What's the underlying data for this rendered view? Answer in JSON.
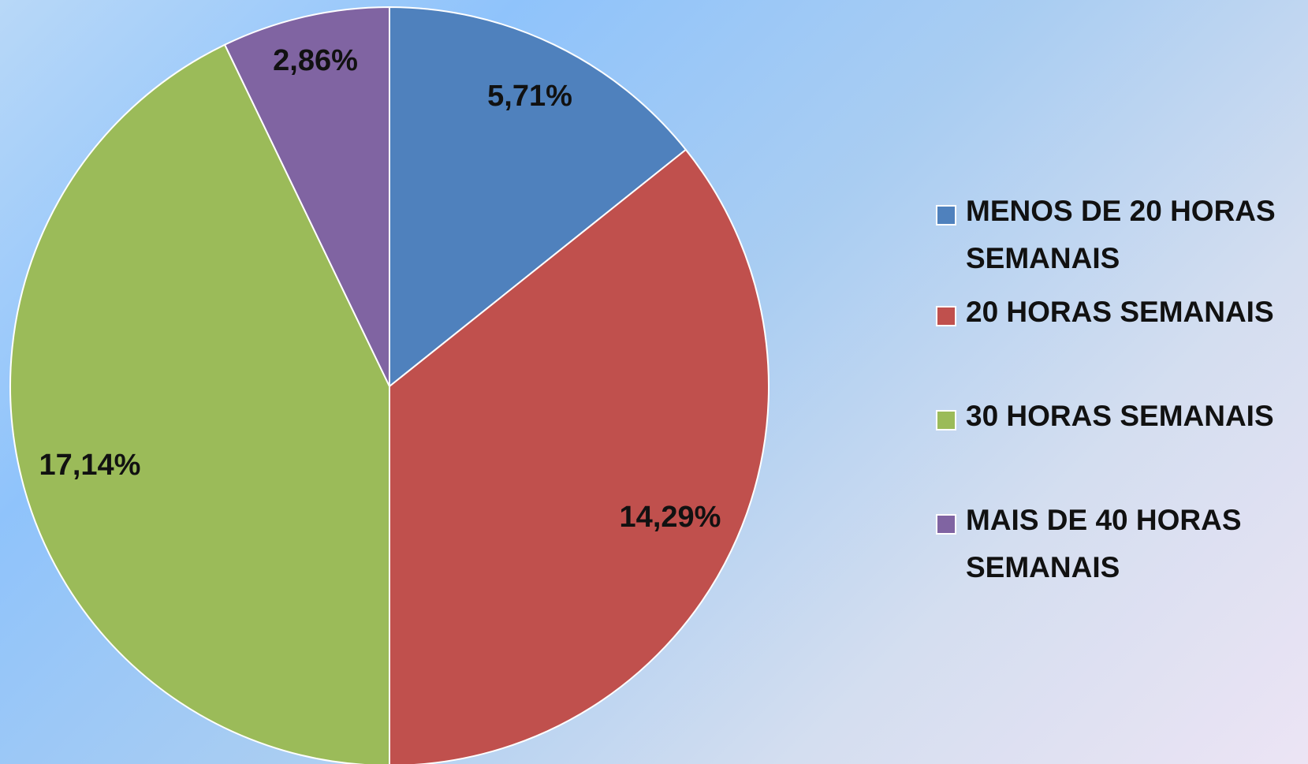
{
  "chart_data": {
    "type": "pie",
    "categories": [
      "MENOS DE 20 HORAS SEMANAIS",
      "20 HORAS SEMANAIS",
      "30 HORAS SEMANAIS",
      "MAIS DE 40 HORAS SEMANAIS"
    ],
    "values": [
      5.71,
      14.29,
      17.14,
      2.86
    ],
    "value_labels": [
      "5,71%",
      "14,29%",
      "17,14%",
      "2,86%"
    ],
    "colors": [
      "#4f81bd",
      "#c0504d",
      "#9bbb59",
      "#8064a2"
    ],
    "legend": "right"
  }
}
